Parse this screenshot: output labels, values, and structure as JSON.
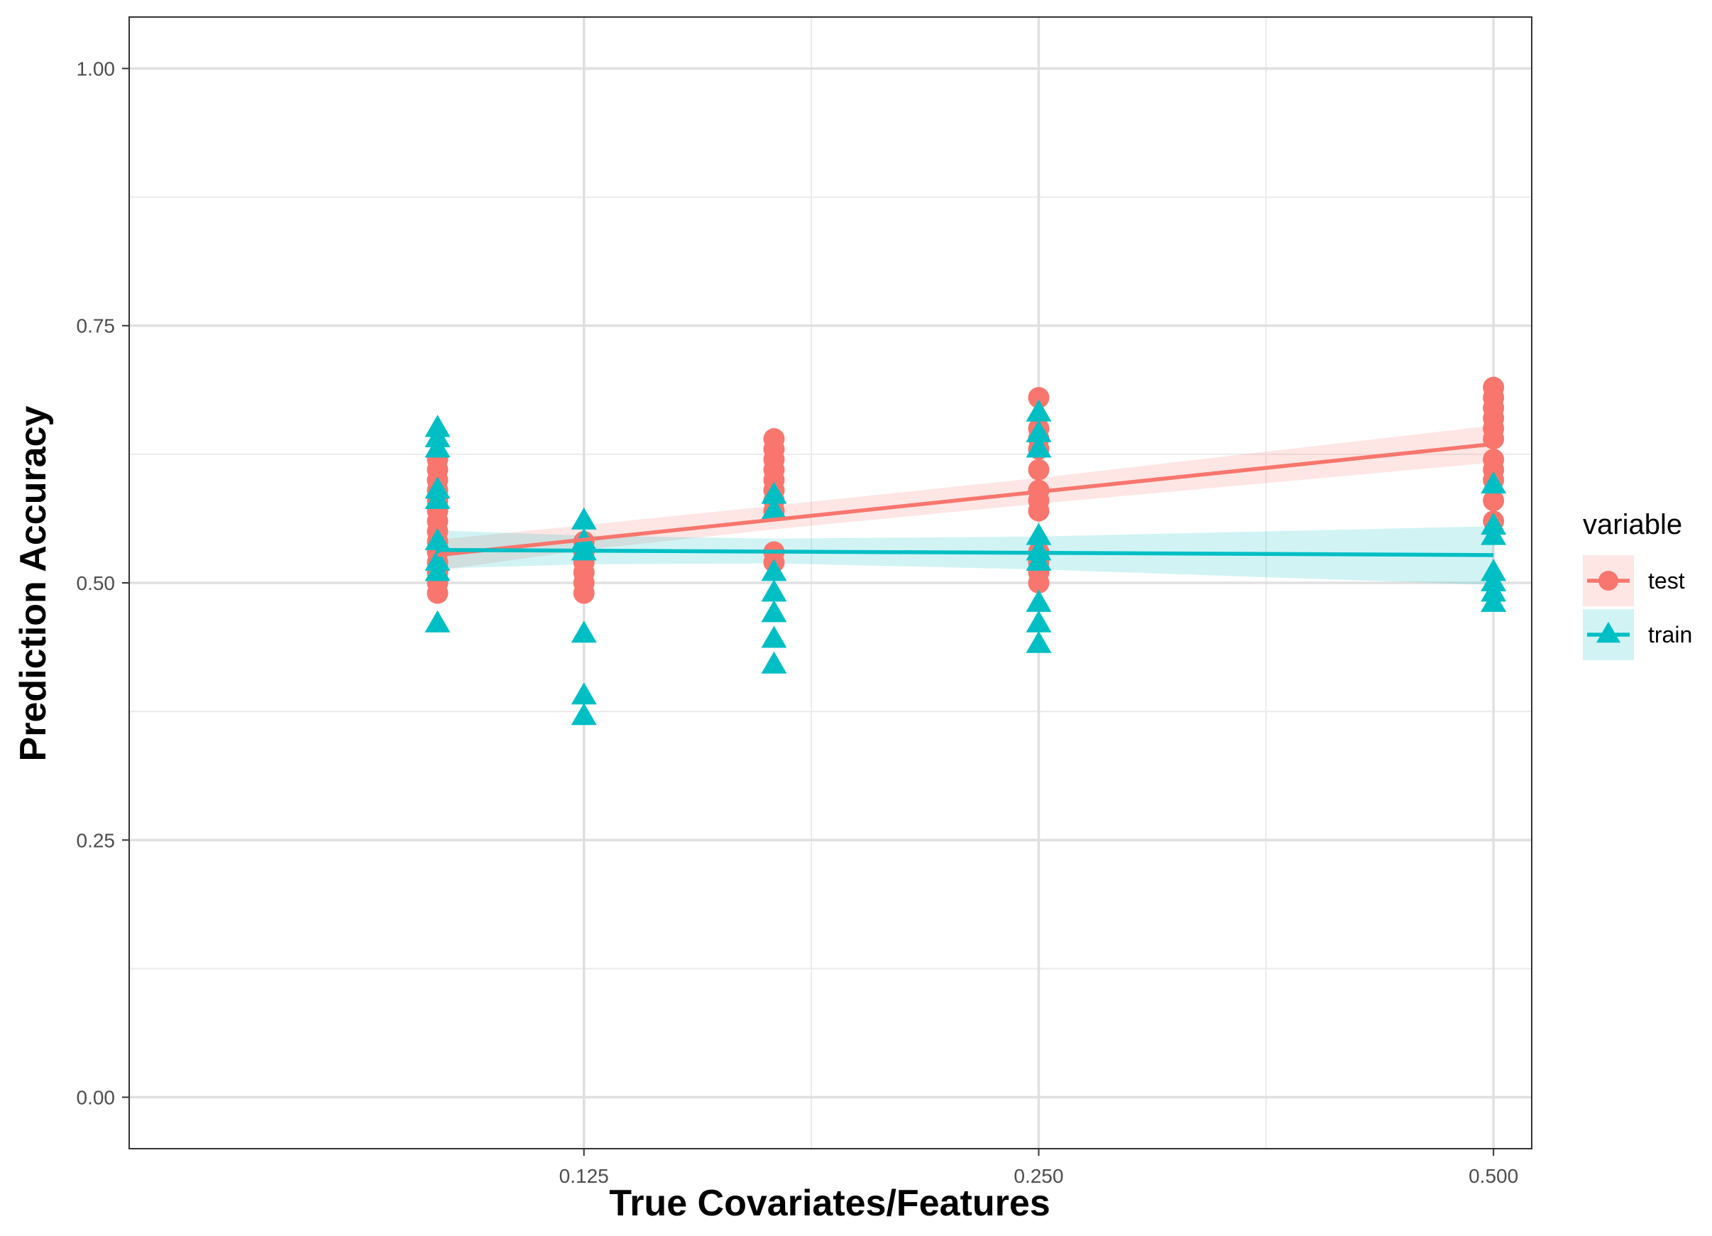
{
  "chart_data": {
    "type": "scatter",
    "title": "",
    "xlabel": "True Covariates/Features",
    "ylabel": "Prediction Accuracy",
    "x_scale": "log2",
    "xlim": [
      0.0625,
      0.53
    ],
    "ylim": [
      -0.05,
      1.05
    ],
    "x_ticks": [
      {
        "value": 0.125,
        "label": "0.125"
      },
      {
        "value": 0.25,
        "label": "0.250"
      },
      {
        "value": 0.5,
        "label": "0.500"
      }
    ],
    "y_ticks": [
      {
        "value": 0.0,
        "label": "0.00"
      },
      {
        "value": 0.25,
        "label": "0.25"
      },
      {
        "value": 0.5,
        "label": "0.50"
      },
      {
        "value": 0.75,
        "label": "0.75"
      },
      {
        "value": 1.0,
        "label": "1.00"
      }
    ],
    "grid": true,
    "legend": {
      "title": "variable",
      "position": "right"
    },
    "series": [
      {
        "name": "test",
        "color": "#F8766D",
        "marker": "circle",
        "points": [
          {
            "x": 0.1,
            "y": 0.49
          },
          {
            "x": 0.1,
            "y": 0.5
          },
          {
            "x": 0.1,
            "y": 0.51
          },
          {
            "x": 0.1,
            "y": 0.52
          },
          {
            "x": 0.1,
            "y": 0.53
          },
          {
            "x": 0.1,
            "y": 0.54
          },
          {
            "x": 0.1,
            "y": 0.55
          },
          {
            "x": 0.1,
            "y": 0.56
          },
          {
            "x": 0.1,
            "y": 0.57
          },
          {
            "x": 0.1,
            "y": 0.58
          },
          {
            "x": 0.1,
            "y": 0.59
          },
          {
            "x": 0.1,
            "y": 0.6
          },
          {
            "x": 0.1,
            "y": 0.61
          },
          {
            "x": 0.1,
            "y": 0.62
          },
          {
            "x": 0.125,
            "y": 0.49
          },
          {
            "x": 0.125,
            "y": 0.5
          },
          {
            "x": 0.125,
            "y": 0.51
          },
          {
            "x": 0.125,
            "y": 0.52
          },
          {
            "x": 0.125,
            "y": 0.53
          },
          {
            "x": 0.125,
            "y": 0.54
          },
          {
            "x": 0.167,
            "y": 0.52
          },
          {
            "x": 0.167,
            "y": 0.53
          },
          {
            "x": 0.167,
            "y": 0.57
          },
          {
            "x": 0.167,
            "y": 0.58
          },
          {
            "x": 0.167,
            "y": 0.59
          },
          {
            "x": 0.167,
            "y": 0.6
          },
          {
            "x": 0.167,
            "y": 0.61
          },
          {
            "x": 0.167,
            "y": 0.62
          },
          {
            "x": 0.167,
            "y": 0.63
          },
          {
            "x": 0.167,
            "y": 0.64
          },
          {
            "x": 0.25,
            "y": 0.5
          },
          {
            "x": 0.25,
            "y": 0.51
          },
          {
            "x": 0.25,
            "y": 0.52
          },
          {
            "x": 0.25,
            "y": 0.53
          },
          {
            "x": 0.25,
            "y": 0.57
          },
          {
            "x": 0.25,
            "y": 0.58
          },
          {
            "x": 0.25,
            "y": 0.59
          },
          {
            "x": 0.25,
            "y": 0.61
          },
          {
            "x": 0.25,
            "y": 0.63
          },
          {
            "x": 0.25,
            "y": 0.64
          },
          {
            "x": 0.25,
            "y": 0.65
          },
          {
            "x": 0.25,
            "y": 0.68
          },
          {
            "x": 0.5,
            "y": 0.56
          },
          {
            "x": 0.5,
            "y": 0.58
          },
          {
            "x": 0.5,
            "y": 0.6
          },
          {
            "x": 0.5,
            "y": 0.61
          },
          {
            "x": 0.5,
            "y": 0.62
          },
          {
            "x": 0.5,
            "y": 0.64
          },
          {
            "x": 0.5,
            "y": 0.65
          },
          {
            "x": 0.5,
            "y": 0.66
          },
          {
            "x": 0.5,
            "y": 0.67
          },
          {
            "x": 0.5,
            "y": 0.68
          },
          {
            "x": 0.5,
            "y": 0.69
          }
        ],
        "trend": {
          "x": [
            0.1,
            0.5
          ],
          "y": [
            0.527,
            0.635
          ]
        },
        "band": {
          "x": [
            0.1,
            0.125,
            0.167,
            0.25,
            0.5
          ],
          "lower": [
            0.512,
            0.532,
            0.552,
            0.577,
            0.617
          ],
          "upper": [
            0.542,
            0.556,
            0.575,
            0.602,
            0.653
          ]
        }
      },
      {
        "name": "train",
        "color": "#00BFC4",
        "marker": "triangle",
        "points": [
          {
            "x": 0.1,
            "y": 0.46
          },
          {
            "x": 0.1,
            "y": 0.51
          },
          {
            "x": 0.1,
            "y": 0.52
          },
          {
            "x": 0.1,
            "y": 0.54
          },
          {
            "x": 0.1,
            "y": 0.58
          },
          {
            "x": 0.1,
            "y": 0.59
          },
          {
            "x": 0.1,
            "y": 0.63
          },
          {
            "x": 0.1,
            "y": 0.64
          },
          {
            "x": 0.1,
            "y": 0.65
          },
          {
            "x": 0.125,
            "y": 0.37
          },
          {
            "x": 0.125,
            "y": 0.39
          },
          {
            "x": 0.125,
            "y": 0.45
          },
          {
            "x": 0.125,
            "y": 0.53
          },
          {
            "x": 0.125,
            "y": 0.54
          },
          {
            "x": 0.125,
            "y": 0.56
          },
          {
            "x": 0.167,
            "y": 0.42
          },
          {
            "x": 0.167,
            "y": 0.445
          },
          {
            "x": 0.167,
            "y": 0.47
          },
          {
            "x": 0.167,
            "y": 0.49
          },
          {
            "x": 0.167,
            "y": 0.51
          },
          {
            "x": 0.167,
            "y": 0.57
          },
          {
            "x": 0.167,
            "y": 0.585
          },
          {
            "x": 0.25,
            "y": 0.44
          },
          {
            "x": 0.25,
            "y": 0.46
          },
          {
            "x": 0.25,
            "y": 0.48
          },
          {
            "x": 0.25,
            "y": 0.52
          },
          {
            "x": 0.25,
            "y": 0.53
          },
          {
            "x": 0.25,
            "y": 0.545
          },
          {
            "x": 0.25,
            "y": 0.63
          },
          {
            "x": 0.25,
            "y": 0.645
          },
          {
            "x": 0.25,
            "y": 0.665
          },
          {
            "x": 0.5,
            "y": 0.48
          },
          {
            "x": 0.5,
            "y": 0.49
          },
          {
            "x": 0.5,
            "y": 0.5
          },
          {
            "x": 0.5,
            "y": 0.51
          },
          {
            "x": 0.5,
            "y": 0.545
          },
          {
            "x": 0.5,
            "y": 0.555
          },
          {
            "x": 0.5,
            "y": 0.595
          }
        ],
        "trend": {
          "x": [
            0.1,
            0.5
          ],
          "y": [
            0.532,
            0.527
          ]
        },
        "band": {
          "x": [
            0.1,
            0.125,
            0.167,
            0.25,
            0.5
          ],
          "lower": [
            0.514,
            0.518,
            0.519,
            0.513,
            0.498
          ],
          "upper": [
            0.551,
            0.546,
            0.543,
            0.545,
            0.555
          ]
        }
      }
    ]
  }
}
